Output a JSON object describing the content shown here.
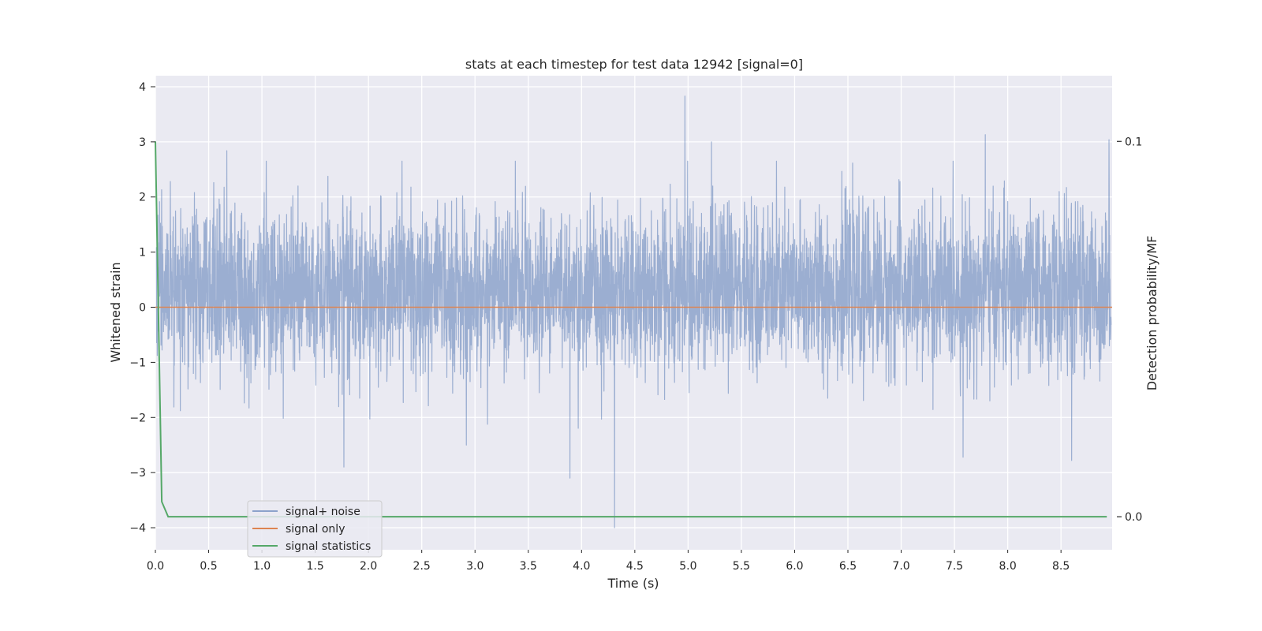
{
  "chart_data": {
    "type": "line",
    "title": "stats at each timestep for test data 12942 [signal=0]",
    "xlabel": "Time (s)",
    "ylabel": "Whitened strain",
    "y2label": "Detection probability/MF",
    "xlim": [
      0,
      8.98
    ],
    "ylim": [
      -4.4,
      4.2
    ],
    "y2lim": [
      -0.0088,
      0.1175
    ],
    "xticks": [
      0.0,
      0.5,
      1.0,
      1.5,
      2.0,
      2.5,
      3.0,
      3.5,
      4.0,
      4.5,
      5.0,
      5.5,
      6.0,
      6.5,
      7.0,
      7.5,
      8.0,
      8.5
    ],
    "xtick_labels": [
      "0.0",
      "0.5",
      "1.0",
      "1.5",
      "2.0",
      "2.5",
      "3.0",
      "3.5",
      "4.0",
      "4.5",
      "5.0",
      "5.5",
      "6.0",
      "6.5",
      "7.0",
      "7.5",
      "8.0",
      "8.5"
    ],
    "yticks": [
      -4,
      -3,
      -2,
      -1,
      0,
      1,
      2,
      3,
      4
    ],
    "ytick_labels": [
      "−4",
      "−3",
      "−2",
      "−1",
      "0",
      "1",
      "2",
      "3",
      "4"
    ],
    "y2ticks": [
      0.0,
      0.1
    ],
    "y2tick_labels": [
      "0.0",
      "0.1"
    ],
    "grid": true,
    "legend_position": "lower-left",
    "series": [
      {
        "name": "signal+ noise",
        "axis": "left",
        "color": "#4c72b0",
        "kind": "noise",
        "typical_range": [
          -1.5,
          2.2
        ],
        "peaks": [
          {
            "x": 4.97,
            "y": 3.83
          },
          {
            "x": 4.31,
            "y": -4.0
          },
          {
            "x": 3.89,
            "y": -3.1
          },
          {
            "x": 7.79,
            "y": 3.13
          },
          {
            "x": 8.95,
            "y": 3.04
          },
          {
            "x": 5.22,
            "y": 3.0
          },
          {
            "x": 1.77,
            "y": -2.9
          },
          {
            "x": 0.67,
            "y": 2.84
          },
          {
            "x": 7.58,
            "y": -2.72
          },
          {
            "x": 8.6,
            "y": -2.78
          }
        ]
      },
      {
        "name": "signal only",
        "axis": "left",
        "color": "#dd8452",
        "x": [
          0.0,
          8.98
        ],
        "y": [
          0.0,
          0.0
        ]
      },
      {
        "name": "signal statistics",
        "axis": "right",
        "color": "#55a868",
        "x": [
          0.0,
          0.06,
          0.12,
          0.5,
          1.0,
          2.0,
          3.0,
          4.0,
          5.0,
          6.0,
          7.0,
          8.0,
          8.93
        ],
        "y": [
          0.1,
          0.004,
          0.0,
          0.0,
          0.0,
          0.0,
          0.0,
          0.0,
          0.0,
          0.0,
          0.0,
          0.0,
          0.0
        ]
      }
    ]
  }
}
